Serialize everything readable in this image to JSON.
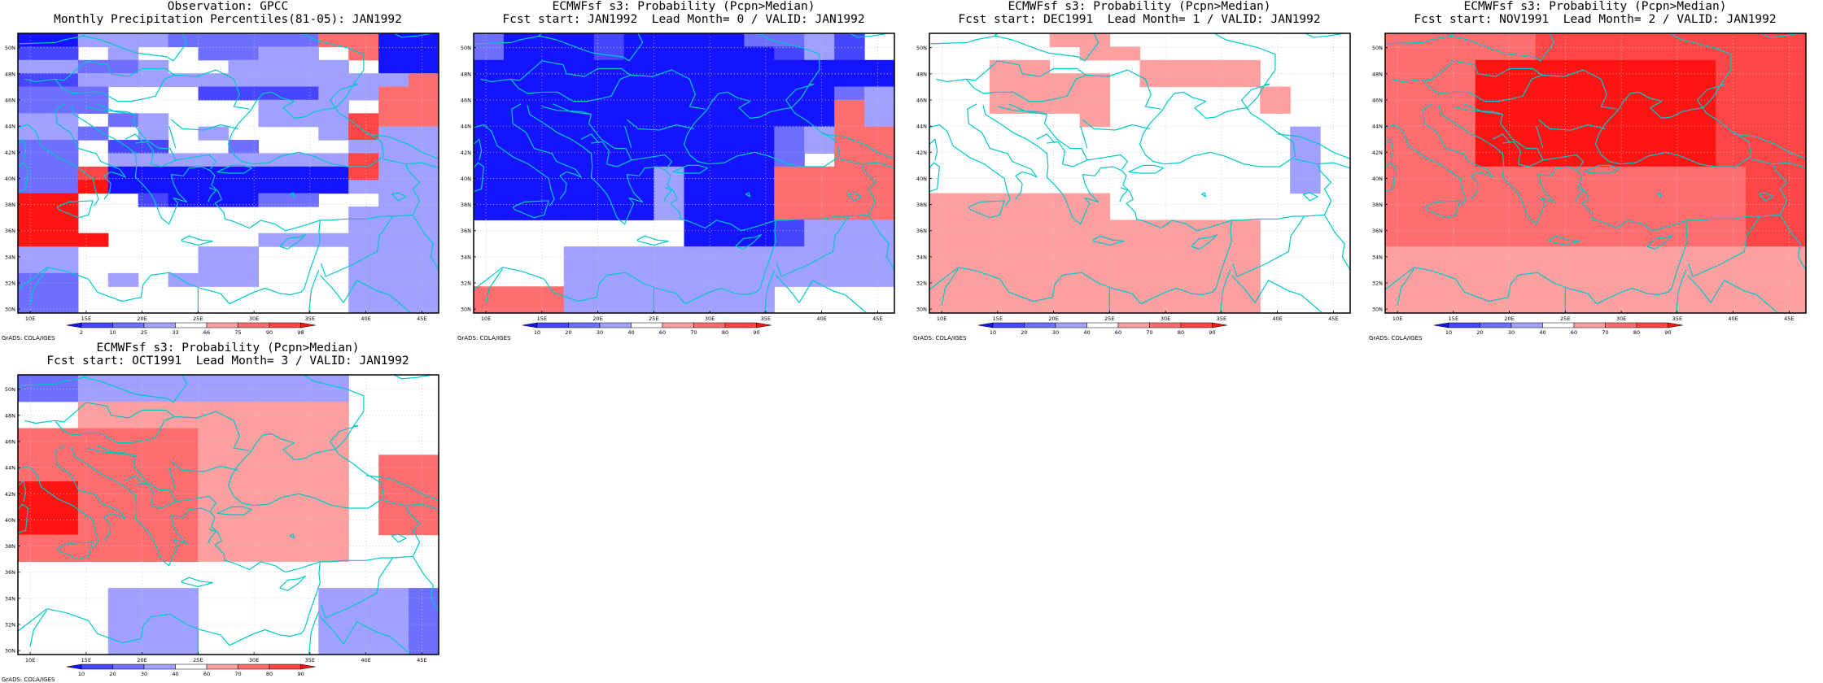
{
  "panels": [
    {
      "title1": "Observation: GPCC",
      "title2": "Monthly Precipitation Percentiles(81-05): JAN1992",
      "credit": "GrADS: COLA/IGES",
      "colorbar_labels": [
        "2",
        "10",
        "25",
        "33",
        "66",
        "75",
        "90",
        "98"
      ],
      "colorbar_colors": [
        "#1414ff",
        "#4646ff",
        "#6e6eff",
        "#a0a0ff",
        "#ffffff",
        "#ffa0a0",
        "#ff6e6e",
        "#ff4646",
        "#ff1414"
      ],
      "grid": [
        "00333222226600",
        "11434422334600",
        "33223443333400",
        "11333333333336",
        "22244411113366",
        "22244444333466",
        "33423444333766",
        "33243434443733",
        "22411442444333",
        "22433333333733",
        "22700000000733",
        "22800000000333",
        "88441000224433",
        "88444444444333",
        "88444444444333",
        "88844444333333",
        "33444433444333",
        "33444433444333",
        "22434333444333",
        "22444444444333",
        "22444444444333"
      ]
    },
    {
      "title1": "ECMWFsf s3: Probability (Pcpn>Median)",
      "title2": "Fcst start: JAN1992  Lead Month= 0 / VALID: JAN1992",
      "credit": "GrADS: COLA/IGES",
      "colorbar_labels": [
        "10",
        "20",
        "30",
        "40",
        "60",
        "70",
        "80",
        "90"
      ],
      "colorbar_colors": [
        "#1414ff",
        "#4646ff",
        "#6e6eff",
        "#a0a0ff",
        "#ffffff",
        "#ffa0a0",
        "#ff6e6e",
        "#ff4646",
        "#ff1414"
      ],
      "grid": [
        "20001000022314",
        "20001000001314",
        "00000000000000",
        "00000000000000",
        "00000000000023",
        "00000000000063",
        "00000000000063",
        "00000000002366",
        "00000000002366",
        "00000000002466",
        "00000030006666",
        "00000030006666",
        "00000030006666",
        "00000030006666",
        "44444440001333",
        "44444440001333",
        "44433333333333",
        "44433333333333",
        "44433333333333",
        "66633333334444",
        "66633333334444"
      ]
    },
    {
      "title1": "ECMWFsf s3: Probability (Pcpn>Median)",
      "title2": "Fcst start: DEC1991  Lead Month= 1 / VALID: JAN1992",
      "credit": "GrADS: COLA/IGES",
      "colorbar_labels": [
        "10",
        "20",
        "30",
        "40",
        "60",
        "70",
        "80",
        "90"
      ],
      "colorbar_colors": [
        "#1414ff",
        "#4646ff",
        "#6e6eff",
        "#a0a0ff",
        "#ffffff",
        "#ffa0a0",
        "#ff6e6e",
        "#ff4646",
        "#ff1414"
      ],
      "grid": [
        "44445544444444",
        "44444554444444",
        "44554445555444",
        "44555545555444",
        "44555544444544",
        "44555544444544",
        "44444544444444",
        "44444444444434",
        "44444444444434",
        "44444444444434",
        "44444444444434",
        "44444444444434",
        "55555544444444",
        "55555544444444",
        "55555555555444",
        "55555555555444",
        "55555555555444",
        "55555555555444",
        "55555555555444",
        "55555555555444",
        "55555555555444"
      ]
    },
    {
      "title1": "ECMWFsf s3: Probability (Pcpn>Median)",
      "title2": "Fcst start: NOV1991  Lead Month= 2 / VALID: JAN1992",
      "credit": "GrADS: COLA/IGES",
      "colorbar_labels": [
        "10",
        "20",
        "30",
        "40",
        "60",
        "70",
        "80",
        "90"
      ],
      "colorbar_colors": [
        "#1414ff",
        "#4646ff",
        "#6e6eff",
        "#a0a0ff",
        "#ffffff",
        "#ffa0a0",
        "#ff6e6e",
        "#ff4646",
        "#ff1414"
      ],
      "grid": [
        "66666777777777",
        "66666777777777",
        "66688888888777",
        "66688888888777",
        "66688888888777",
        "66688888888777",
        "66688888888777",
        "66688888888777",
        "66688888888777",
        "66688888888777",
        "66666666666677",
        "66666666666677",
        "66666666666677",
        "66666666666677",
        "66666666666677",
        "66666666666677",
        "55555555555555",
        "55555555555555",
        "55555555555555",
        "55555555555555",
        "55555555555555"
      ]
    },
    {
      "title1": "ECMWFsf s3: Probability (Pcpn>Median)",
      "title2": "Fcst start: OCT1991  Lead Month= 3 / VALID: JAN1992",
      "credit": "GrADS: COLA/IGES",
      "colorbar_labels": [
        "10",
        "20",
        "30",
        "40",
        "60",
        "70",
        "80",
        "90"
      ],
      "colorbar_colors": [
        "#1414ff",
        "#4646ff",
        "#6e6eff",
        "#a0a0ff",
        "#ffffff",
        "#ffa0a0",
        "#ff6e6e",
        "#ff4646",
        "#ff1414"
      ],
      "grid": [
        "22333333333444",
        "22333333333444",
        "44555555555444",
        "44555555555444",
        "66666655555444",
        "66666655555444",
        "66666655555466",
        "66666655555466",
        "88666655555466",
        "88666655555466",
        "88666655555466",
        "88666655555466",
        "66666655555444",
        "66666655555444",
        "44444444444444",
        "44444444444444",
        "44433344443332",
        "44433344443332",
        "44433344443332",
        "44433344443332",
        "44433344443332"
      ]
    }
  ],
  "lat_labels": [
    "50N",
    "48N",
    "46N",
    "44N",
    "42N",
    "40N",
    "38N",
    "36N",
    "34N",
    "32N",
    "30N"
  ],
  "lon_labels": [
    "10E",
    "15E",
    "20E",
    "25E",
    "30E",
    "35E",
    "40E",
    "45E"
  ],
  "coast_color": "#00c8c8"
}
